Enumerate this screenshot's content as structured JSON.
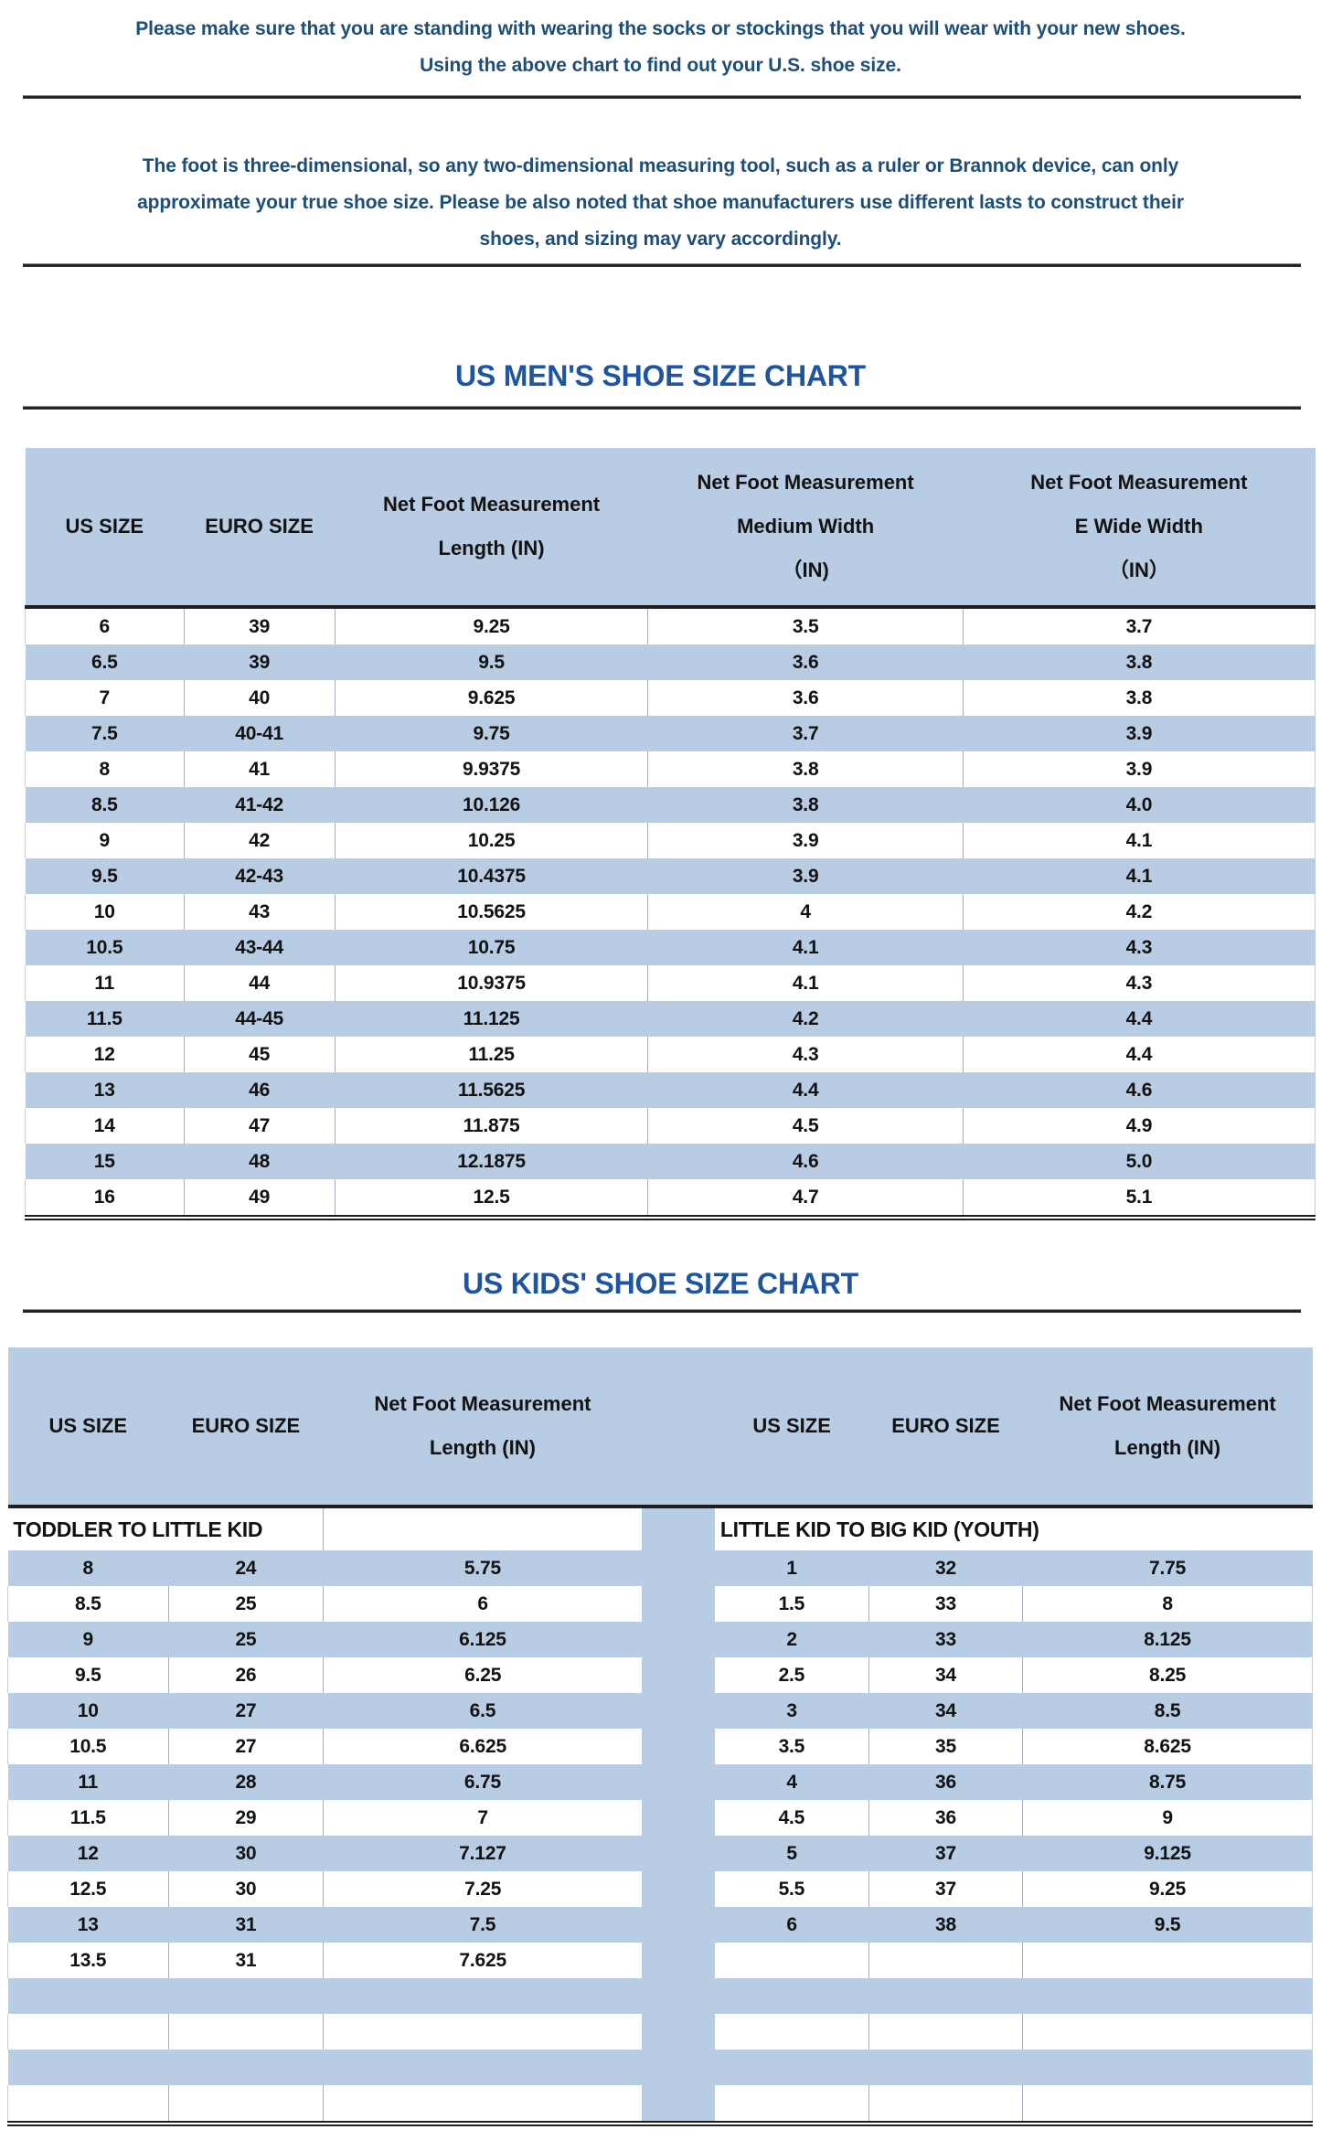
{
  "colors": {
    "row_accent_fill": "#b8cce4",
    "title_blue": "#1f55a0",
    "paragraph_blue": "#1d4e79",
    "grid_line": "#a6aebb",
    "heavy_border": "#1f1f1f"
  },
  "intro_paragraph": {
    "lines": [
      "Please make sure that you are standing with wearing the socks or stockings that you will wear with your new shoes.",
      "Using the above chart to find out your U.S. shoe size."
    ]
  },
  "note_paragraph": {
    "lines": [
      "The foot is three-dimensional, so any two-dimensional measuring tool, such as a ruler or Brannok device, can only",
      "approximate your true shoe size. Please be also noted that shoe manufacturers use different lasts to construct their",
      "shoes, and sizing may vary accordingly."
    ]
  },
  "mens_chart": {
    "title": "US MEN'S SHOE SIZE CHART",
    "header": [
      {
        "lines": [
          "US SIZE"
        ]
      },
      {
        "lines": [
          "EURO SIZE"
        ]
      },
      {
        "lines": [
          "Net Foot Measurement",
          "Length (IN)"
        ]
      },
      {
        "lines": [
          "Net Foot Measurement",
          "Medium Width",
          "（IN)"
        ]
      },
      {
        "lines": [
          "Net Foot Measurement",
          "E Wide Width",
          "（IN）"
        ]
      }
    ],
    "rows": [
      [
        "6",
        "39",
        "9.25",
        "3.5",
        "3.7"
      ],
      [
        "6.5",
        "39",
        "9.5",
        "3.6",
        "3.8"
      ],
      [
        "7",
        "40",
        "9.625",
        "3.6",
        "3.8"
      ],
      [
        "7.5",
        "40-41",
        "9.75",
        "3.7",
        "3.9"
      ],
      [
        "8",
        "41",
        "9.9375",
        "3.8",
        "3.9"
      ],
      [
        "8.5",
        "41-42",
        "10.126",
        "3.8",
        "4.0"
      ],
      [
        "9",
        "42",
        "10.25",
        "3.9",
        "4.1"
      ],
      [
        "9.5",
        "42-43",
        "10.4375",
        "3.9",
        "4.1"
      ],
      [
        "10",
        "43",
        "10.5625",
        "4",
        "4.2"
      ],
      [
        "10.5",
        "43-44",
        "10.75",
        "4.1",
        "4.3"
      ],
      [
        "11",
        "44",
        "10.9375",
        "4.1",
        "4.3"
      ],
      [
        "11.5",
        "44-45",
        "11.125",
        "4.2",
        "4.4"
      ],
      [
        "12",
        "45",
        "11.25",
        "4.3",
        "4.4"
      ],
      [
        "13",
        "46",
        "11.5625",
        "4.4",
        "4.6"
      ],
      [
        "14",
        "47",
        "11.875",
        "4.5",
        "4.9"
      ],
      [
        "15",
        "48",
        "12.1875",
        "4.6",
        "5.0"
      ],
      [
        "16",
        "49",
        "12.5",
        "4.7",
        "5.1"
      ]
    ]
  },
  "kids_chart": {
    "title": "US KIDS' SHOE SIZE CHART",
    "header_left": [
      {
        "lines": [
          "US SIZE"
        ]
      },
      {
        "lines": [
          "EURO SIZE"
        ]
      },
      {
        "lines": [
          "Net Foot Measurement",
          "Length (IN)"
        ]
      }
    ],
    "header_right": [
      {
        "lines": [
          "US SIZE"
        ]
      },
      {
        "lines": [
          "EURO SIZE"
        ]
      },
      {
        "lines": [
          "Net Foot Measurement",
          "Length (IN)"
        ]
      }
    ],
    "left_section_label": "TODDLER TO LITTLE KID",
    "right_section_label": "LITTLE KID TO BIG KID (YOUTH)",
    "left_rows": [
      [
        "8",
        "24",
        "5.75"
      ],
      [
        "8.5",
        "25",
        "6"
      ],
      [
        "9",
        "25",
        "6.125"
      ],
      [
        "9.5",
        "26",
        "6.25"
      ],
      [
        "10",
        "27",
        "6.5"
      ],
      [
        "10.5",
        "27",
        "6.625"
      ],
      [
        "11",
        "28",
        "6.75"
      ],
      [
        "11.5",
        "29",
        "7"
      ],
      [
        "12",
        "30",
        "7.127"
      ],
      [
        "12.5",
        "30",
        "7.25"
      ],
      [
        "13",
        "31",
        "7.5"
      ],
      [
        "13.5",
        "31",
        "7.625"
      ]
    ],
    "right_rows": [
      [
        "1",
        "32",
        "7.75"
      ],
      [
        "1.5",
        "33",
        "8"
      ],
      [
        "2",
        "33",
        "8.125"
      ],
      [
        "2.5",
        "34",
        "8.25"
      ],
      [
        "3",
        "34",
        "8.5"
      ],
      [
        "3.5",
        "35",
        "8.625"
      ],
      [
        "4",
        "36",
        "8.75"
      ],
      [
        "4.5",
        "36",
        "9"
      ],
      [
        "5",
        "37",
        "9.125"
      ],
      [
        "5.5",
        "37",
        "9.25"
      ],
      [
        "6",
        "38",
        "9.5"
      ]
    ],
    "trailing_empty_rows": 4
  }
}
